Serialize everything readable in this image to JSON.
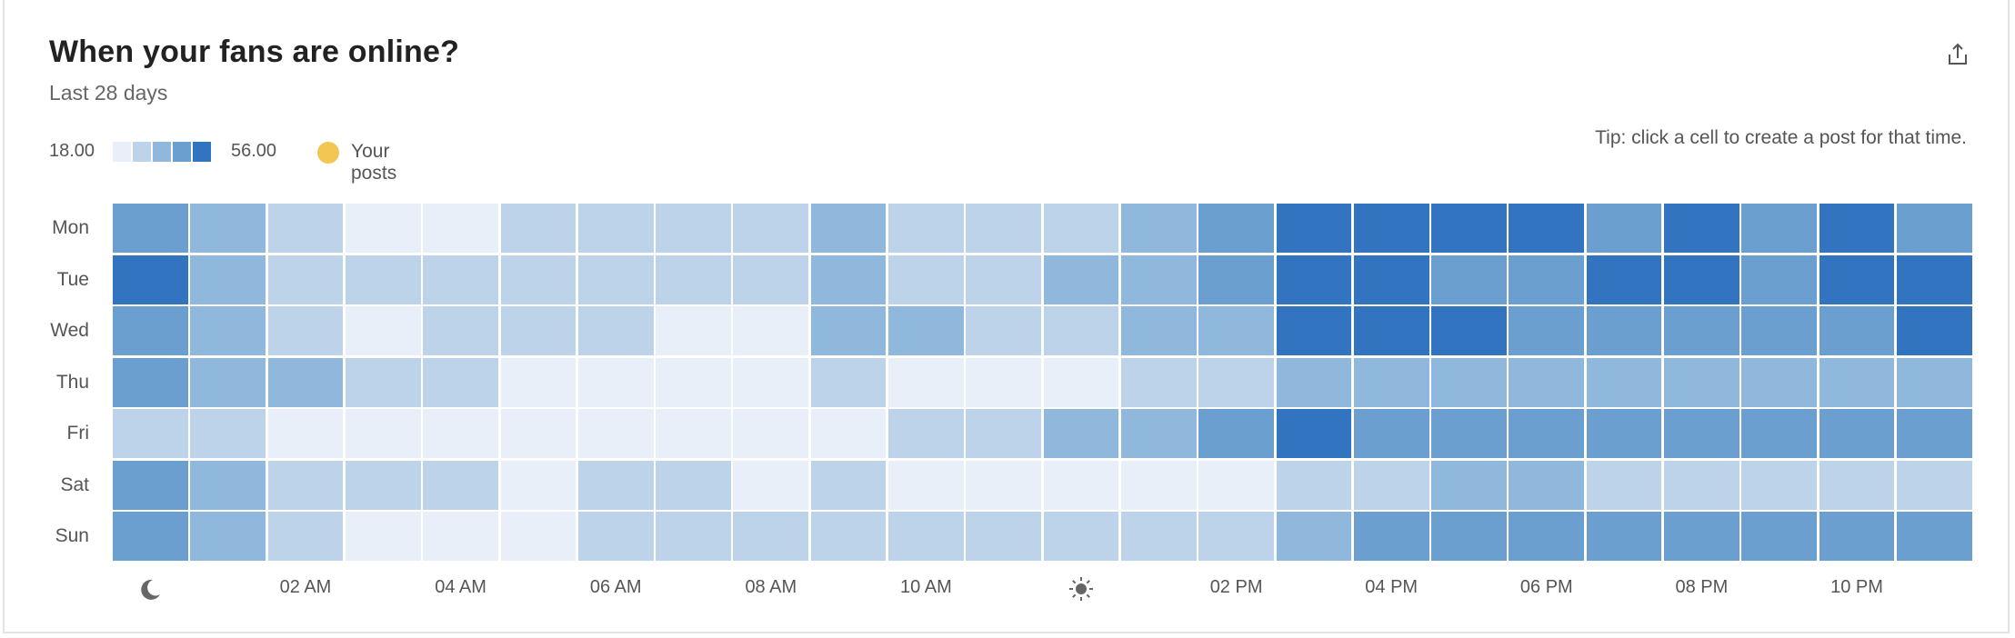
{
  "header": {
    "title": "When your fans are online?",
    "subtitle": "Last 28 days",
    "share_icon": "share-icon"
  },
  "legend": {
    "min_label": "18.00",
    "max_label": "56.00",
    "posts_label": "Your posts",
    "posts_color": "#f3c553",
    "scale_colors": [
      "#e8eff8",
      "#bdd3ea",
      "#8fb8dc",
      "#6a9fd0",
      "#3374c0"
    ]
  },
  "tip": "Tip: click a cell to create a post for that time.",
  "chart_data": {
    "type": "heatmap",
    "title": "When your fans are online?",
    "subtitle": "Last 28 days",
    "value_range": [
      18.0,
      56.0
    ],
    "rows": [
      "Mon",
      "Tue",
      "Wed",
      "Thu",
      "Fri",
      "Sat",
      "Sun"
    ],
    "columns": [
      "00",
      "01",
      "02",
      "03",
      "04",
      "05",
      "06",
      "07",
      "08",
      "09",
      "10",
      "11",
      "12",
      "13",
      "14",
      "15",
      "16",
      "17",
      "18",
      "19",
      "20",
      "21",
      "22",
      "23"
    ],
    "x_tick_labels": [
      {
        "hour": 0,
        "label": "",
        "icon": "moon-icon"
      },
      {
        "hour": 2,
        "label": "02 AM"
      },
      {
        "hour": 4,
        "label": "04 AM"
      },
      {
        "hour": 6,
        "label": "06 AM"
      },
      {
        "hour": 8,
        "label": "08 AM"
      },
      {
        "hour": 10,
        "label": "10 AM"
      },
      {
        "hour": 12,
        "label": "",
        "icon": "sun-icon"
      },
      {
        "hour": 14,
        "label": "02 PM"
      },
      {
        "hour": 16,
        "label": "04 PM"
      },
      {
        "hour": 18,
        "label": "06 PM"
      },
      {
        "hour": 20,
        "label": "08 PM"
      },
      {
        "hour": 22,
        "label": "10 PM"
      }
    ],
    "levels": [
      [
        3,
        2,
        1,
        0,
        0,
        1,
        1,
        1,
        1,
        2,
        1,
        1,
        1,
        2,
        3,
        4,
        4,
        4,
        4,
        3,
        4,
        3,
        4,
        3
      ],
      [
        4,
        2,
        1,
        1,
        1,
        1,
        1,
        1,
        1,
        2,
        1,
        1,
        2,
        2,
        3,
        4,
        4,
        3,
        3,
        4,
        4,
        3,
        4,
        4
      ],
      [
        3,
        2,
        1,
        0,
        1,
        1,
        1,
        0,
        0,
        2,
        2,
        1,
        1,
        2,
        2,
        4,
        4,
        4,
        3,
        3,
        3,
        3,
        3,
        4
      ],
      [
        3,
        2,
        2,
        1,
        1,
        0,
        0,
        0,
        0,
        1,
        0,
        0,
        0,
        1,
        1,
        2,
        2,
        2,
        2,
        2,
        2,
        2,
        2,
        2
      ],
      [
        1,
        1,
        0,
        0,
        0,
        0,
        0,
        0,
        0,
        0,
        1,
        1,
        2,
        2,
        3,
        4,
        3,
        3,
        3,
        3,
        3,
        3,
        3,
        3
      ],
      [
        3,
        2,
        1,
        1,
        1,
        0,
        1,
        1,
        0,
        1,
        0,
        0,
        0,
        0,
        0,
        1,
        1,
        2,
        2,
        1,
        1,
        1,
        1,
        1
      ],
      [
        3,
        2,
        1,
        0,
        0,
        0,
        1,
        1,
        1,
        1,
        1,
        1,
        1,
        1,
        1,
        2,
        3,
        3,
        3,
        3,
        3,
        3,
        3,
        3
      ]
    ],
    "approx_values_by_level": [
      18,
      27,
      37,
      46,
      56
    ]
  }
}
